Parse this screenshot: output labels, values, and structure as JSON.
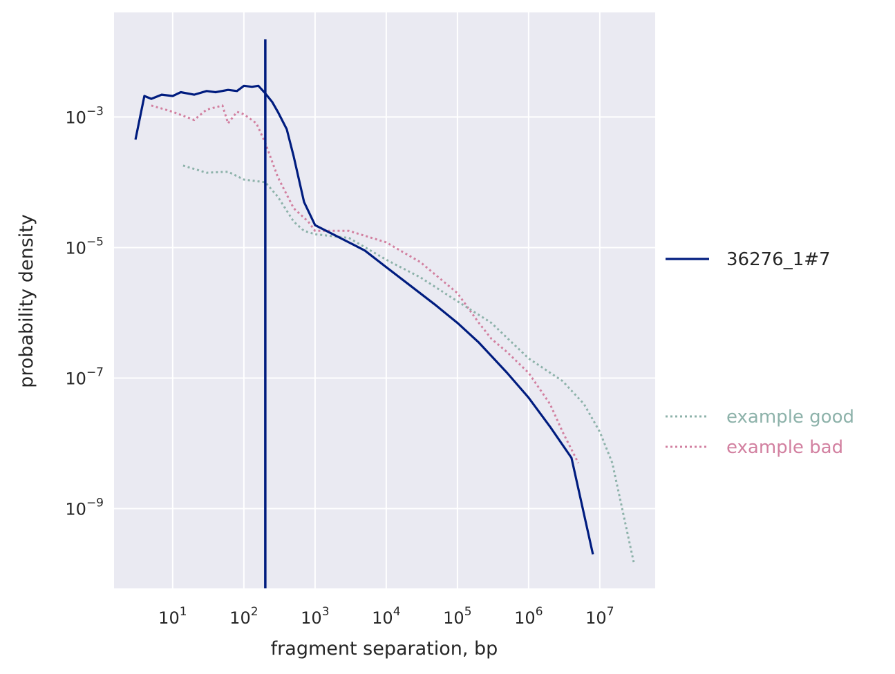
{
  "chart_data": {
    "type": "line",
    "title": "",
    "xlabel": "fragment separation, bp",
    "ylabel": "probability density",
    "x_scale": "log",
    "y_scale": "log",
    "xlim": [
      1.5,
      60000000
    ],
    "ylim": [
      6e-11,
      0.04
    ],
    "grid": true,
    "x_ticks": [
      {
        "value": 10,
        "base": "10",
        "exp": "1"
      },
      {
        "value": 100,
        "base": "10",
        "exp": "2"
      },
      {
        "value": 1000,
        "base": "10",
        "exp": "3"
      },
      {
        "value": 10000,
        "base": "10",
        "exp": "4"
      },
      {
        "value": 100000,
        "base": "10",
        "exp": "5"
      },
      {
        "value": 1000000,
        "base": "10",
        "exp": "6"
      },
      {
        "value": 10000000,
        "base": "10",
        "exp": "7"
      }
    ],
    "y_ticks": [
      {
        "value": 0.001,
        "base": "10",
        "exp": "−3"
      },
      {
        "value": 1e-05,
        "base": "10",
        "exp": "−5"
      },
      {
        "value": 1e-07,
        "base": "10",
        "exp": "−7"
      },
      {
        "value": 1e-09,
        "base": "10",
        "exp": "−9"
      }
    ],
    "vline": {
      "x": 200,
      "color": "#001c7f"
    },
    "series": [
      {
        "name": "36276_1#7",
        "color": "#001c7f",
        "style": "solid",
        "points": [
          [
            3,
            0.00045
          ],
          [
            4,
            0.0021
          ],
          [
            5,
            0.0019
          ],
          [
            7,
            0.0022
          ],
          [
            10,
            0.0021
          ],
          [
            13,
            0.0024
          ],
          [
            20,
            0.0022
          ],
          [
            30,
            0.0025
          ],
          [
            40,
            0.0024
          ],
          [
            60,
            0.0026
          ],
          [
            80,
            0.0025
          ],
          [
            100,
            0.003
          ],
          [
            130,
            0.0029
          ],
          [
            160,
            0.003
          ],
          [
            200,
            0.0023
          ],
          [
            250,
            0.0017
          ],
          [
            300,
            0.0012
          ],
          [
            400,
            0.00065
          ],
          [
            500,
            0.00025
          ],
          [
            700,
            5e-05
          ],
          [
            1000,
            2.2e-05
          ],
          [
            2000,
            1.5e-05
          ],
          [
            5000,
            9e-06
          ],
          [
            10000,
            5e-06
          ],
          [
            20000,
            2.8e-06
          ],
          [
            50000,
            1.3e-06
          ],
          [
            100000,
            7e-07
          ],
          [
            200000,
            3.5e-07
          ],
          [
            500000,
            1.2e-07
          ],
          [
            1000000,
            5e-08
          ],
          [
            2000000,
            1.8e-08
          ],
          [
            4000000,
            6e-09
          ],
          [
            8000000,
            2e-10
          ]
        ]
      },
      {
        "name": "example good",
        "color": "#8db2aa",
        "style": "dotted",
        "points": [
          [
            14,
            0.00018
          ],
          [
            30,
            0.00014
          ],
          [
            60,
            0.000145
          ],
          [
            100,
            0.00011
          ],
          [
            200,
            0.0001
          ],
          [
            300,
            6e-05
          ],
          [
            500,
            2.5e-05
          ],
          [
            700,
            1.8e-05
          ],
          [
            1000,
            1.6e-05
          ],
          [
            3000,
            1.4e-05
          ],
          [
            10000,
            6.5e-06
          ],
          [
            30000,
            3.5e-06
          ],
          [
            100000,
            1.5e-06
          ],
          [
            300000,
            7e-07
          ],
          [
            1000000,
            2e-07
          ],
          [
            3000000,
            9e-08
          ],
          [
            6000000,
            4e-08
          ],
          [
            10000000,
            1.5e-08
          ],
          [
            15000000,
            5e-09
          ],
          [
            30000000,
            1.5e-10
          ]
        ]
      },
      {
        "name": "example bad",
        "color": "#d280a0",
        "style": "dotted",
        "points": [
          [
            5,
            0.0015
          ],
          [
            10,
            0.0012
          ],
          [
            20,
            0.0009
          ],
          [
            30,
            0.0013
          ],
          [
            50,
            0.0015
          ],
          [
            60,
            0.0008
          ],
          [
            80,
            0.0012
          ],
          [
            100,
            0.0011
          ],
          [
            150,
            0.0008
          ],
          [
            200,
            0.0004
          ],
          [
            300,
            0.00012
          ],
          [
            500,
            4e-05
          ],
          [
            800,
            2.5e-05
          ],
          [
            1000,
            1.8e-05
          ],
          [
            3000,
            1.8e-05
          ],
          [
            10000,
            1.2e-05
          ],
          [
            30000,
            6e-06
          ],
          [
            100000,
            2e-06
          ],
          [
            200000,
            7e-07
          ],
          [
            300000,
            4e-07
          ],
          [
            500000,
            2.5e-07
          ],
          [
            1000000,
            1.2e-07
          ],
          [
            2000000,
            4e-08
          ],
          [
            3000000,
            1.5e-08
          ],
          [
            5000000,
            5e-09
          ]
        ]
      }
    ],
    "legend": {
      "placement": "right",
      "entries": [
        {
          "label": "36276_1#7",
          "color": "#001c7f",
          "style": "solid"
        },
        {
          "label": "example good",
          "color": "#8db2aa",
          "style": "dotted"
        },
        {
          "label": "example bad",
          "color": "#d280a0",
          "style": "dotted"
        }
      ]
    },
    "colors": {
      "plot_background": "#eaeaf2",
      "grid": "#ffffff",
      "text": "#262626"
    }
  }
}
